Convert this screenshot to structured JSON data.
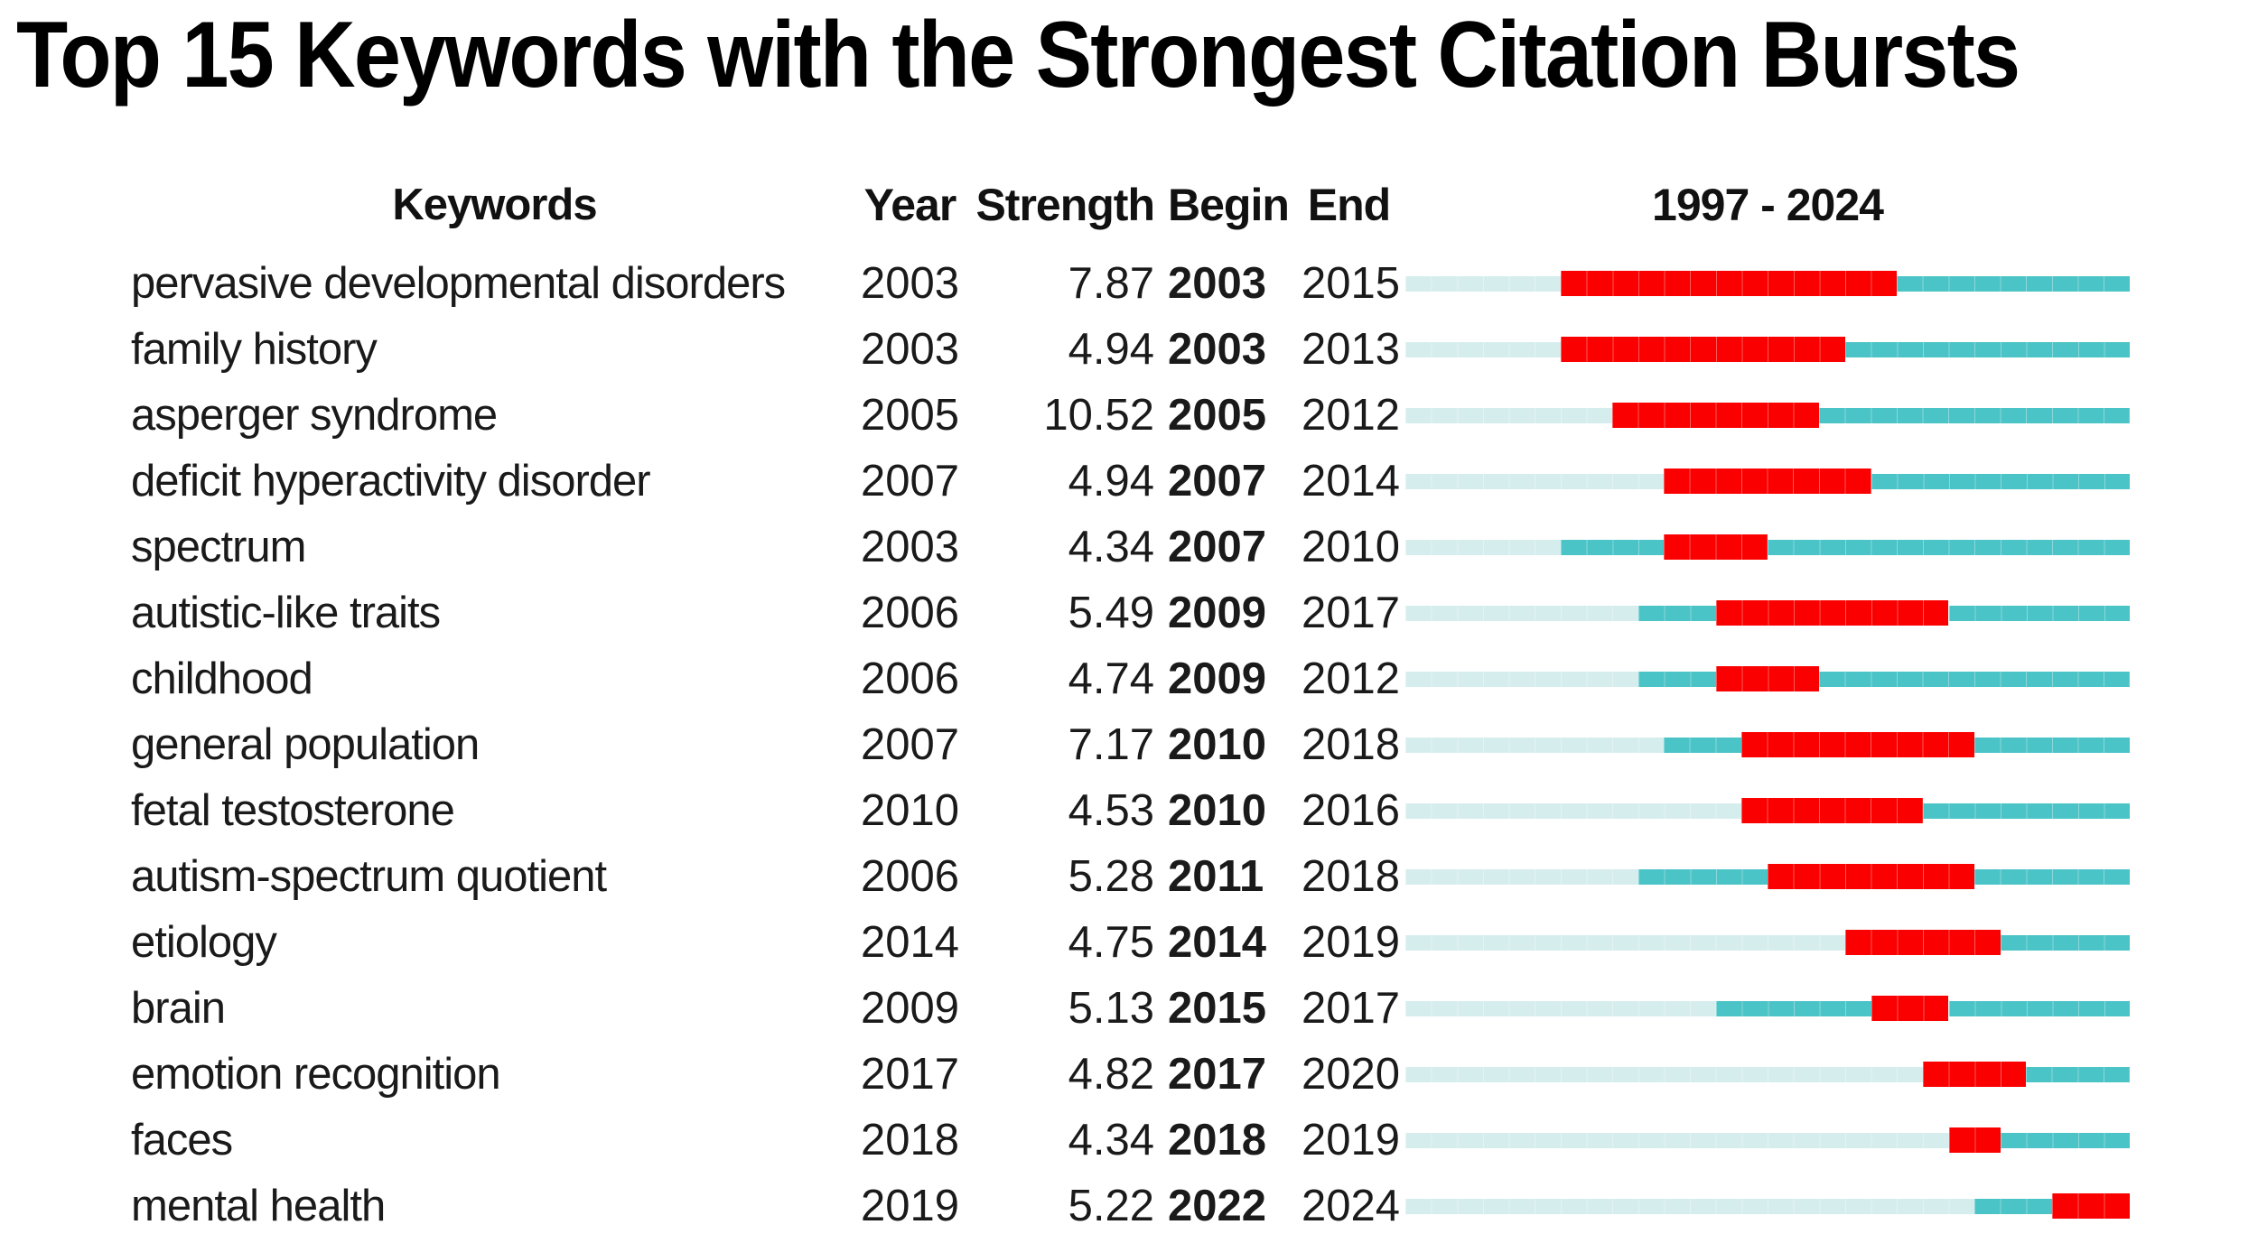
{
  "title": "Top 15 Keywords with the Strongest Citation Bursts",
  "header": {
    "keywords": "Keywords",
    "year": "Year",
    "strength": "Strength",
    "begin": "Begin",
    "end": "End",
    "timeline": "1997 - 2024"
  },
  "colors": {
    "burst_red": "#FB0000",
    "active_teal": "#4BC4C7",
    "inactive_light": "#D6EDEE",
    "text": "#1a1a1a",
    "title_text": "#000000"
  },
  "chart_data": {
    "type": "table",
    "title": "Top 15 Keywords with the Strongest Citation Bursts",
    "columns": [
      "Keywords",
      "Year",
      "Strength",
      "Begin",
      "End",
      "1997 - 2024"
    ],
    "timeline_range": [
      1997,
      2024
    ],
    "legend": {
      "burst_segment": "burst period (red)",
      "active_segment": "keyword active (teal)",
      "inactive_segment": "before first appearance (light)"
    },
    "rows": [
      {
        "keyword": "pervasive developmental disorders",
        "year": 2003,
        "strength": 7.87,
        "begin": 2003,
        "end": 2015
      },
      {
        "keyword": "family history",
        "year": 2003,
        "strength": 4.94,
        "begin": 2003,
        "end": 2013
      },
      {
        "keyword": "asperger syndrome",
        "year": 2005,
        "strength": 10.52,
        "begin": 2005,
        "end": 2012
      },
      {
        "keyword": "deficit hyperactivity disorder",
        "year": 2007,
        "strength": 4.94,
        "begin": 2007,
        "end": 2014
      },
      {
        "keyword": "spectrum",
        "year": 2003,
        "strength": 4.34,
        "begin": 2007,
        "end": 2010
      },
      {
        "keyword": "autistic-like traits",
        "year": 2006,
        "strength": 5.49,
        "begin": 2009,
        "end": 2017
      },
      {
        "keyword": "childhood",
        "year": 2006,
        "strength": 4.74,
        "begin": 2009,
        "end": 2012
      },
      {
        "keyword": "general population",
        "year": 2007,
        "strength": 7.17,
        "begin": 2010,
        "end": 2018
      },
      {
        "keyword": "fetal testosterone",
        "year": 2010,
        "strength": 4.53,
        "begin": 2010,
        "end": 2016
      },
      {
        "keyword": "autism-spectrum quotient",
        "year": 2006,
        "strength": 5.28,
        "begin": 2011,
        "end": 2018
      },
      {
        "keyword": "etiology",
        "year": 2014,
        "strength": 4.75,
        "begin": 2014,
        "end": 2019
      },
      {
        "keyword": "brain",
        "year": 2009,
        "strength": 5.13,
        "begin": 2015,
        "end": 2017
      },
      {
        "keyword": "emotion recognition",
        "year": 2017,
        "strength": 4.82,
        "begin": 2017,
        "end": 2020
      },
      {
        "keyword": "faces",
        "year": 2018,
        "strength": 4.34,
        "begin": 2018,
        "end": 2019
      },
      {
        "keyword": "mental health",
        "year": 2019,
        "strength": 5.22,
        "begin": 2022,
        "end": 2024
      }
    ]
  }
}
